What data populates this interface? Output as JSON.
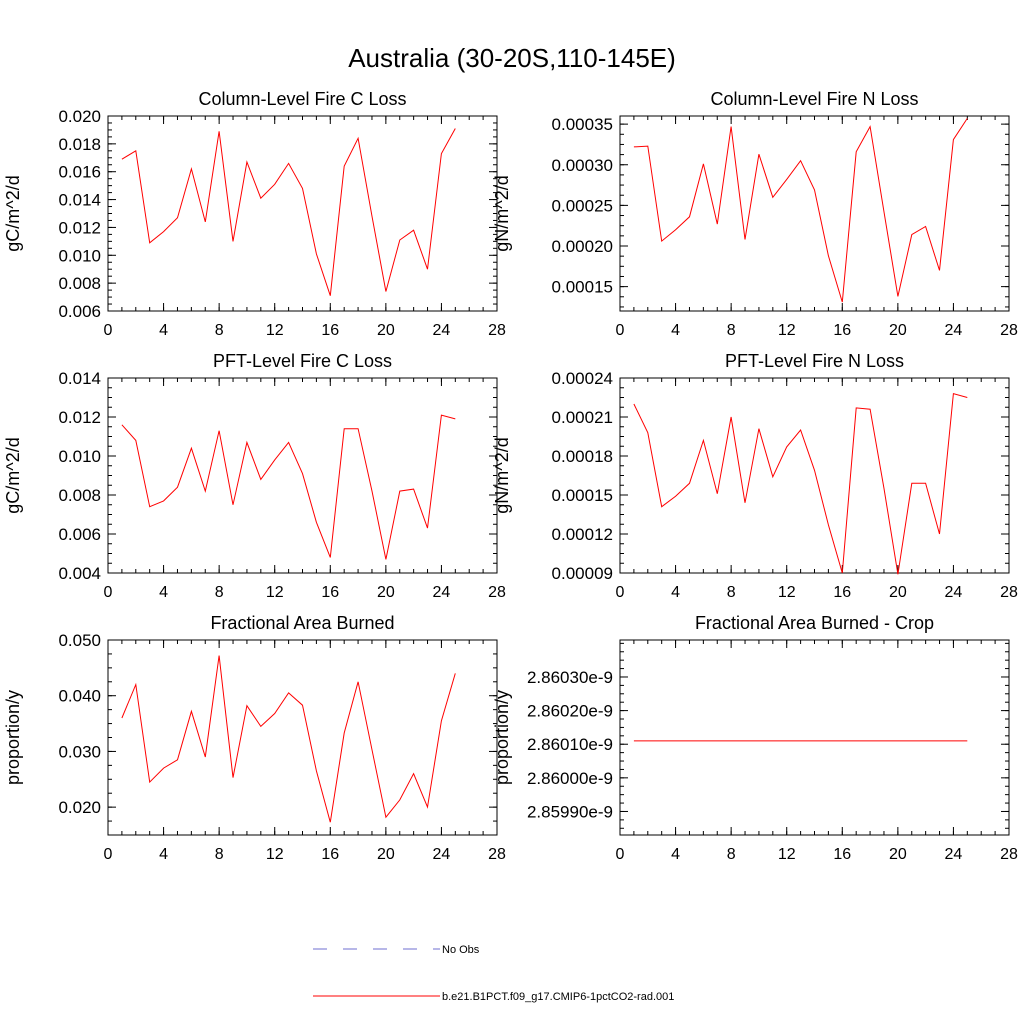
{
  "figure": {
    "title": "Australia (30-20S,110-145E)"
  },
  "legend": {
    "entries": [
      {
        "label": "No Obs",
        "color": "#6f6fd0",
        "style": "dashed"
      },
      {
        "label": "b.e21.B1PCT.f09_g17.CMIP6-1pctCO2-rad.001",
        "color": "#ff0000",
        "style": "solid"
      }
    ]
  },
  "chart_data": [
    {
      "type": "line",
      "title": "Column-Level Fire C Loss",
      "ylabel": "gC/m^2/d",
      "xlabel": "",
      "xlim": [
        0,
        28
      ],
      "xticks": [
        "0",
        "4",
        "8",
        "12",
        "16",
        "20",
        "24",
        "28"
      ],
      "ylim": [
        0.006,
        0.02
      ],
      "yticks": [
        "0.006",
        "0.008",
        "0.010",
        "0.012",
        "0.014",
        "0.016",
        "0.018",
        "0.020"
      ],
      "series": [
        {
          "name": "b.e21.B1PCT.f09_g17.CMIP6-1pctCO2-rad.001",
          "color": "#ff0000",
          "x": [
            1,
            2,
            3,
            4,
            5,
            6,
            7,
            8,
            9,
            10,
            11,
            12,
            13,
            14,
            15,
            16,
            17,
            18,
            19,
            20,
            21,
            22,
            23,
            24,
            25
          ],
          "y": [
            0.0169,
            0.0175,
            0.0109,
            0.0117,
            0.0127,
            0.0162,
            0.0124,
            0.0189,
            0.011,
            0.0167,
            0.0141,
            0.0151,
            0.0166,
            0.0148,
            0.0101,
            0.0071,
            0.0164,
            0.0184,
            0.0128,
            0.0074,
            0.0111,
            0.0118,
            0.009,
            0.0173,
            0.0191
          ]
        }
      ]
    },
    {
      "type": "line",
      "title": "Column-Level Fire N Loss",
      "ylabel": "gN/m^2/d",
      "xlabel": "",
      "xlim": [
        0,
        28
      ],
      "xticks": [
        "0",
        "4",
        "8",
        "12",
        "16",
        "20",
        "24",
        "28"
      ],
      "ylim": [
        0.00012,
        0.00036
      ],
      "yticks": [
        "0.00015",
        "0.00020",
        "0.00025",
        "0.00030",
        "0.00035"
      ],
      "series": [
        {
          "name": "b.e21.B1PCT.f09_g17.CMIP6-1pctCO2-rad.001",
          "color": "#ff0000",
          "x": [
            1,
            2,
            3,
            4,
            5,
            6,
            7,
            8,
            9,
            10,
            11,
            12,
            13,
            14,
            15,
            16,
            17,
            18,
            19,
            20,
            21,
            22,
            23,
            24,
            25
          ],
          "y": [
            0.000322,
            0.000323,
            0.000206,
            0.00022,
            0.000236,
            0.000301,
            0.000227,
            0.000347,
            0.000208,
            0.000313,
            0.00026,
            0.000282,
            0.000305,
            0.000269,
            0.000188,
            0.000131,
            0.000316,
            0.000347,
            0.000242,
            0.000138,
            0.000214,
            0.000224,
            0.00017,
            0.000331,
            0.000357
          ]
        }
      ]
    },
    {
      "type": "line",
      "title": "PFT-Level Fire C Loss",
      "ylabel": "gC/m^2/d",
      "xlabel": "",
      "xlim": [
        0,
        28
      ],
      "xticks": [
        "0",
        "4",
        "8",
        "12",
        "16",
        "20",
        "24",
        "28"
      ],
      "ylim": [
        0.004,
        0.014
      ],
      "yticks": [
        "0.004",
        "0.006",
        "0.008",
        "0.010",
        "0.012",
        "0.014"
      ],
      "series": [
        {
          "name": "b.e21.B1PCT.f09_g17.CMIP6-1pctCO2-rad.001",
          "color": "#ff0000",
          "x": [
            1,
            2,
            3,
            4,
            5,
            6,
            7,
            8,
            9,
            10,
            11,
            12,
            13,
            14,
            15,
            16,
            17,
            18,
            19,
            20,
            21,
            22,
            23,
            24,
            25
          ],
          "y": [
            0.0116,
            0.0108,
            0.0074,
            0.0077,
            0.0084,
            0.0104,
            0.0082,
            0.0113,
            0.0075,
            0.0107,
            0.0088,
            0.0098,
            0.0107,
            0.0091,
            0.0066,
            0.0048,
            0.0114,
            0.0114,
            0.0082,
            0.0047,
            0.0082,
            0.0083,
            0.0063,
            0.0121,
            0.0119
          ]
        }
      ]
    },
    {
      "type": "line",
      "title": "PFT-Level Fire N Loss",
      "ylabel": "gN/m^2/d",
      "xlabel": "",
      "xlim": [
        0,
        28
      ],
      "xticks": [
        "0",
        "4",
        "8",
        "12",
        "16",
        "20",
        "24",
        "28"
      ],
      "ylim": [
        9e-05,
        0.00024
      ],
      "yticks": [
        "0.00009",
        "0.00012",
        "0.00015",
        "0.00018",
        "0.00021",
        "0.00024"
      ],
      "series": [
        {
          "name": "b.e21.B1PCT.f09_g17.CMIP6-1pctCO2-rad.001",
          "color": "#ff0000",
          "x": [
            1,
            2,
            3,
            4,
            5,
            6,
            7,
            8,
            9,
            10,
            11,
            12,
            13,
            14,
            15,
            16,
            17,
            18,
            19,
            20,
            21,
            22,
            23,
            24,
            25
          ],
          "y": [
            0.00022,
            0.000198,
            0.000141,
            0.000149,
            0.000159,
            0.000192,
            0.000151,
            0.00021,
            0.000144,
            0.000201,
            0.000164,
            0.000187,
            0.0002,
            0.000169,
            0.000127,
            9e-05,
            0.000217,
            0.000216,
            0.000155,
            8.9e-05,
            0.000159,
            0.000159,
            0.00012,
            0.000228,
            0.000225
          ]
        }
      ]
    },
    {
      "type": "line",
      "title": "Fractional Area Burned",
      "ylabel": "proportion/y",
      "xlabel": "",
      "xlim": [
        0,
        28
      ],
      "xticks": [
        "0",
        "4",
        "8",
        "12",
        "16",
        "20",
        "24",
        "28"
      ],
      "ylim": [
        0.015,
        0.05
      ],
      "yticks": [
        "0.020",
        "0.030",
        "0.040",
        "0.050"
      ],
      "series": [
        {
          "name": "b.e21.B1PCT.f09_g17.CMIP6-1pctCO2-rad.001",
          "color": "#ff0000",
          "x": [
            1,
            2,
            3,
            4,
            5,
            6,
            7,
            8,
            9,
            10,
            11,
            12,
            13,
            14,
            15,
            16,
            17,
            18,
            19,
            20,
            21,
            22,
            23,
            24,
            25
          ],
          "y": [
            0.036,
            0.042,
            0.0245,
            0.027,
            0.0285,
            0.0372,
            0.029,
            0.0472,
            0.0253,
            0.0382,
            0.0345,
            0.0368,
            0.0405,
            0.0383,
            0.0265,
            0.0173,
            0.0333,
            0.0425,
            0.0303,
            0.0182,
            0.0213,
            0.026,
            0.02,
            0.0355,
            0.044
          ]
        }
      ]
    },
    {
      "type": "line",
      "title": "Fractional Area Burned - Crop",
      "ylabel": "proportion/y",
      "xlabel": "",
      "xlim": [
        0,
        28
      ],
      "xticks": [
        "0",
        "4",
        "8",
        "12",
        "16",
        "20",
        "24",
        "28"
      ],
      "ylim": [
        2.85983e-09,
        2.86041e-09
      ],
      "yticks": [
        "2.85990e-9",
        "2.86000e-9",
        "2.86010e-9",
        "2.86020e-9",
        "2.86030e-9"
      ],
      "series": [
        {
          "name": "b.e21.B1PCT.f09_g17.CMIP6-1pctCO2-rad.001",
          "color": "#ff0000",
          "x": [
            1,
            25
          ],
          "y": [
            2.86011e-09,
            2.86011e-09
          ]
        }
      ]
    }
  ]
}
